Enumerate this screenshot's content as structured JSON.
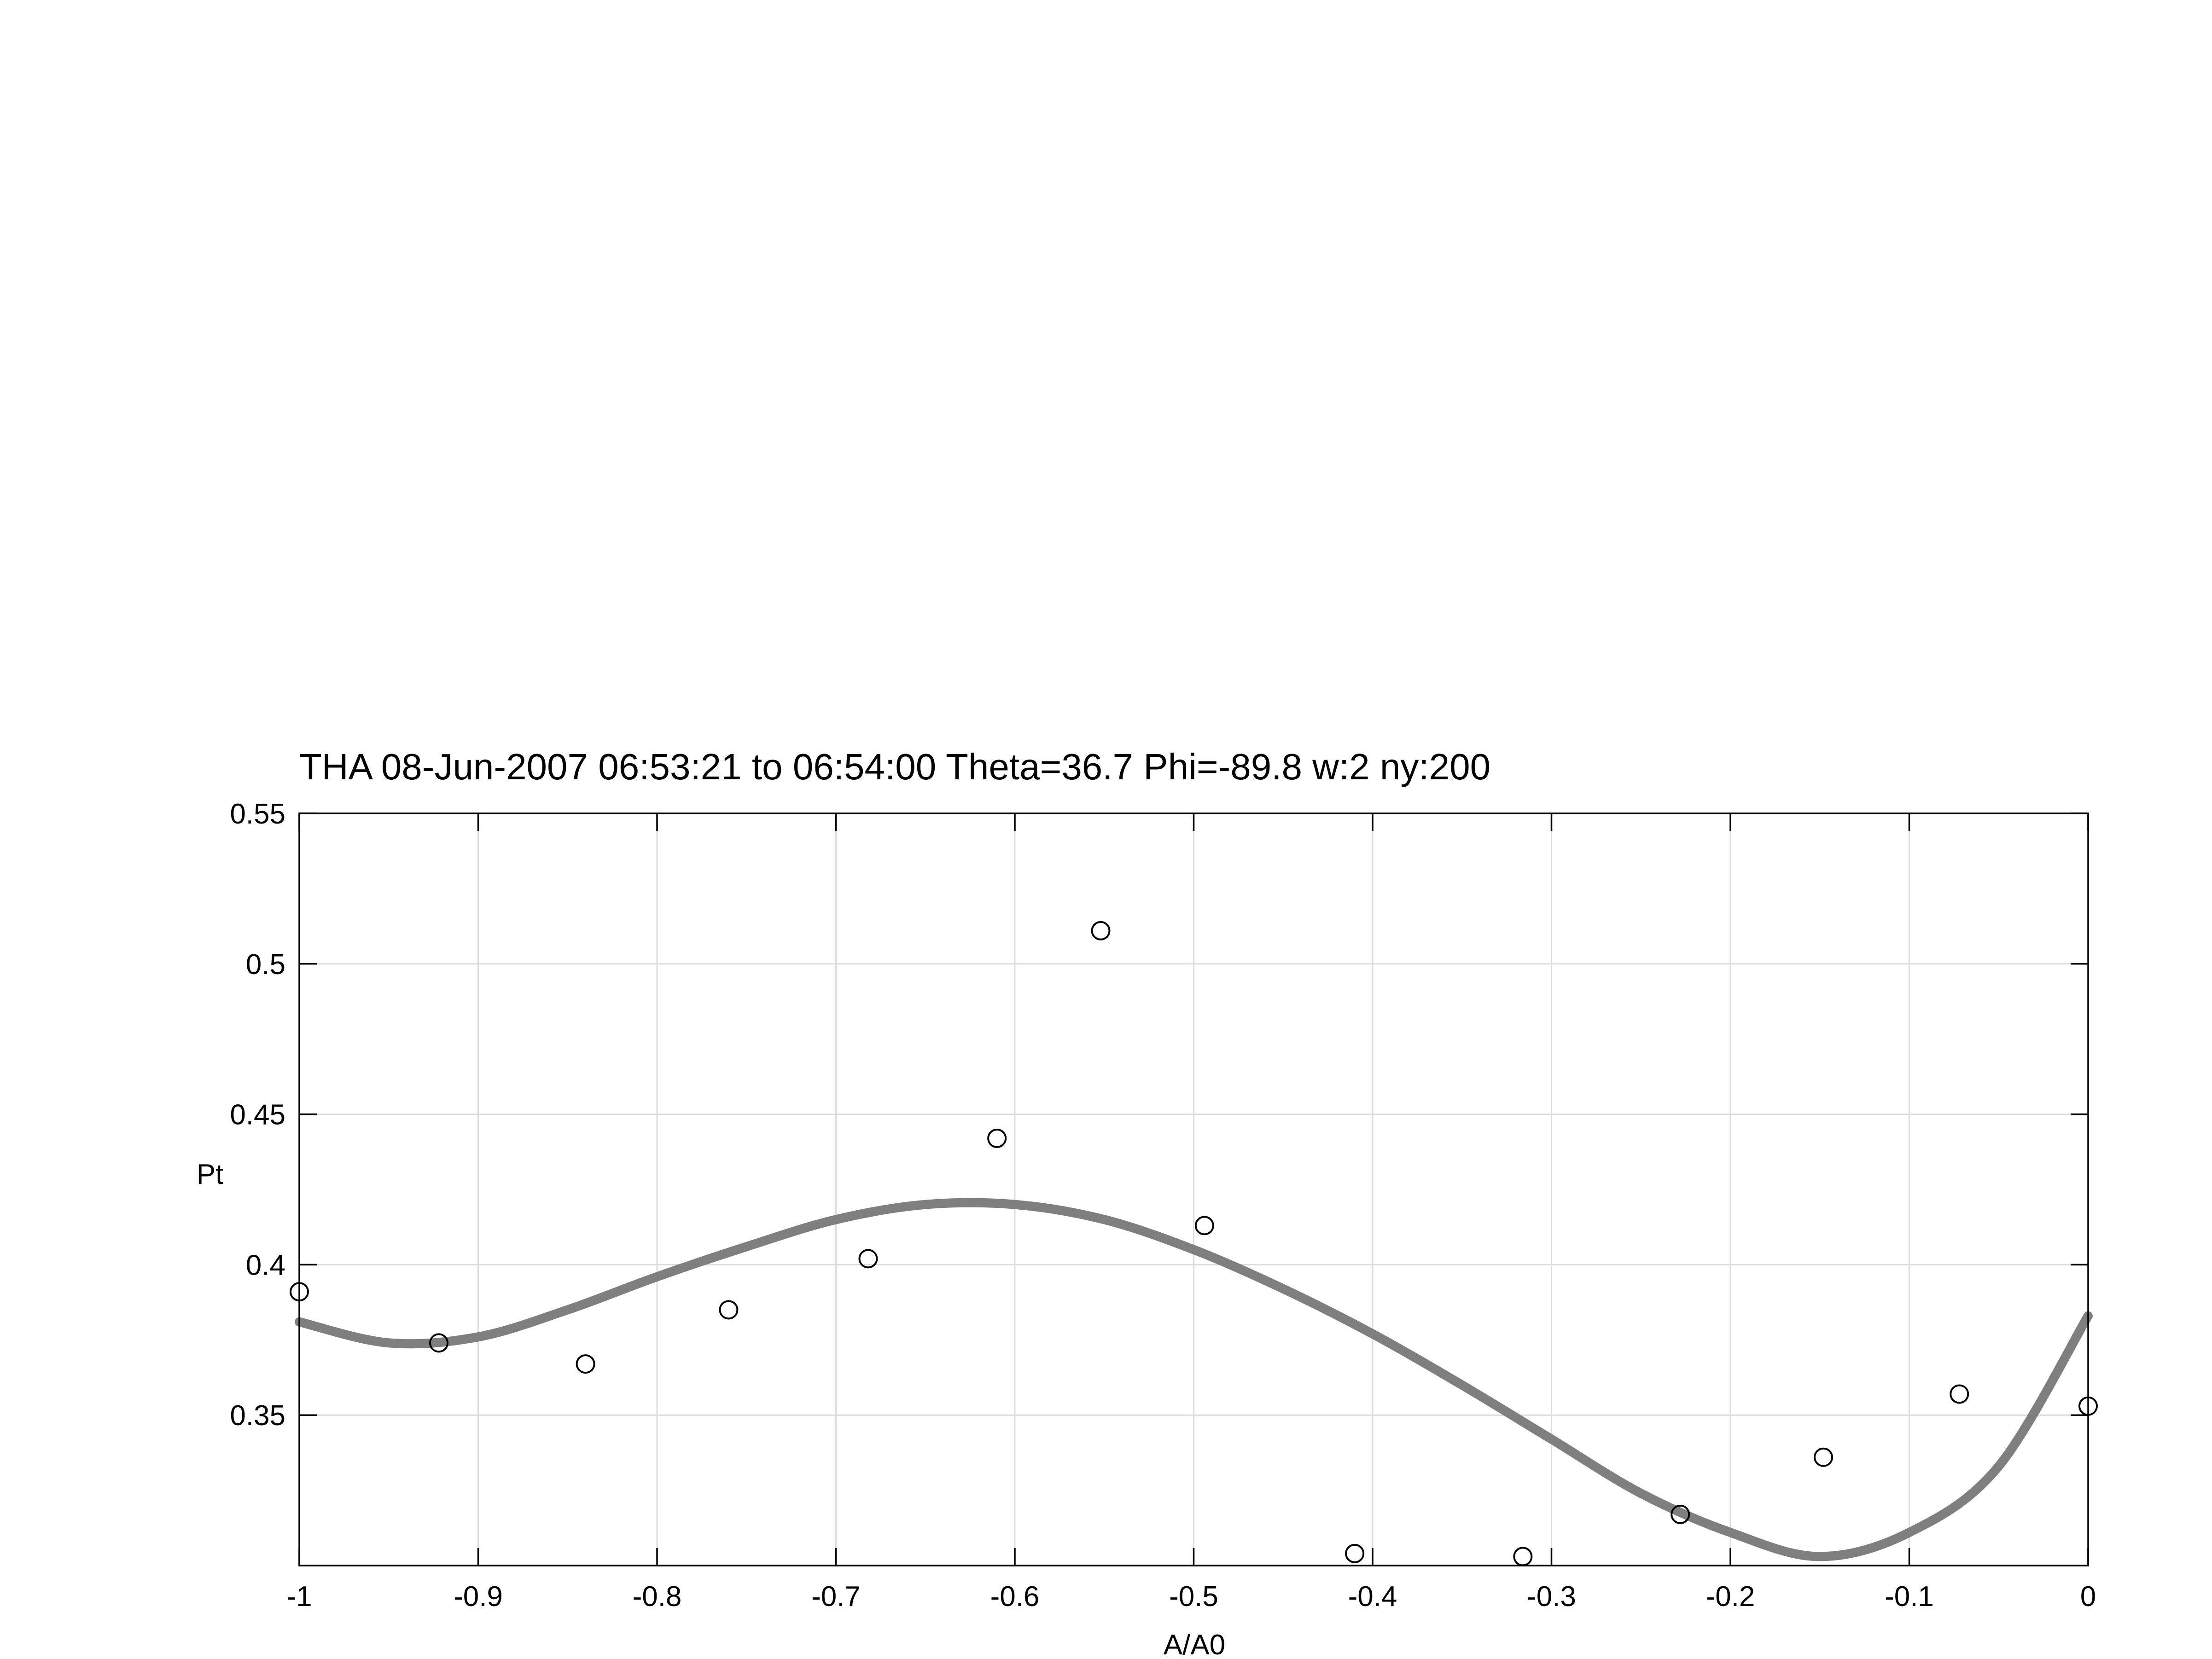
{
  "chart_data": {
    "type": "scatter",
    "title": "THA 08-Jun-2007 06:53:21 to 06:54:00 Theta=36.7 Phi=-89.8 w:2 ny:200",
    "xlabel": "A/A0",
    "ylabel": "Pt",
    "xlim": [
      -1,
      0
    ],
    "ylim": [
      0.3,
      0.55
    ],
    "xticks": [
      -1,
      -0.9,
      -0.8,
      -0.7,
      -0.6,
      -0.5,
      -0.4,
      -0.3,
      -0.2,
      -0.1,
      0
    ],
    "xtick_labels": [
      "-1",
      "-0.9",
      "-0.8",
      "-0.7",
      "-0.6",
      "-0.5",
      "-0.4",
      "-0.3",
      "-0.2",
      "-0.1",
      "0"
    ],
    "yticks": [
      0.35,
      0.4,
      0.45,
      0.5,
      0.55
    ],
    "ytick_labels": [
      "0.35",
      "0.4",
      "0.45",
      "0.5",
      "0.55"
    ],
    "grid": true,
    "colors": {
      "points": "#000000",
      "fit": "#7f7f7f",
      "grid": "#dcdcdc",
      "axes": "#000000"
    },
    "series": [
      {
        "kind": "markers",
        "marker": "open-circle",
        "x": [
          -1.0,
          -0.922,
          -0.84,
          -0.76,
          -0.682,
          -0.61,
          -0.552,
          -0.494,
          -0.41,
          -0.316,
          -0.228,
          -0.148,
          -0.072,
          0.0
        ],
        "y": [
          0.391,
          0.374,
          0.367,
          0.385,
          0.402,
          0.442,
          0.511,
          0.413,
          0.304,
          0.303,
          0.317,
          0.336,
          0.357,
          0.353
        ]
      },
      {
        "kind": "line",
        "x": [
          -1.0,
          -0.95,
          -0.9,
          -0.85,
          -0.8,
          -0.75,
          -0.7,
          -0.65,
          -0.6,
          -0.55,
          -0.5,
          -0.45,
          -0.4,
          -0.35,
          -0.3,
          -0.25,
          -0.2,
          -0.15,
          -0.1,
          -0.05,
          0.0
        ],
        "y": [
          0.381,
          0.374,
          0.376,
          0.385,
          0.396,
          0.406,
          0.415,
          0.42,
          0.42,
          0.415,
          0.405,
          0.392,
          0.377,
          0.36,
          0.342,
          0.324,
          0.311,
          0.303,
          0.311,
          0.333,
          0.383
        ]
      }
    ]
  }
}
